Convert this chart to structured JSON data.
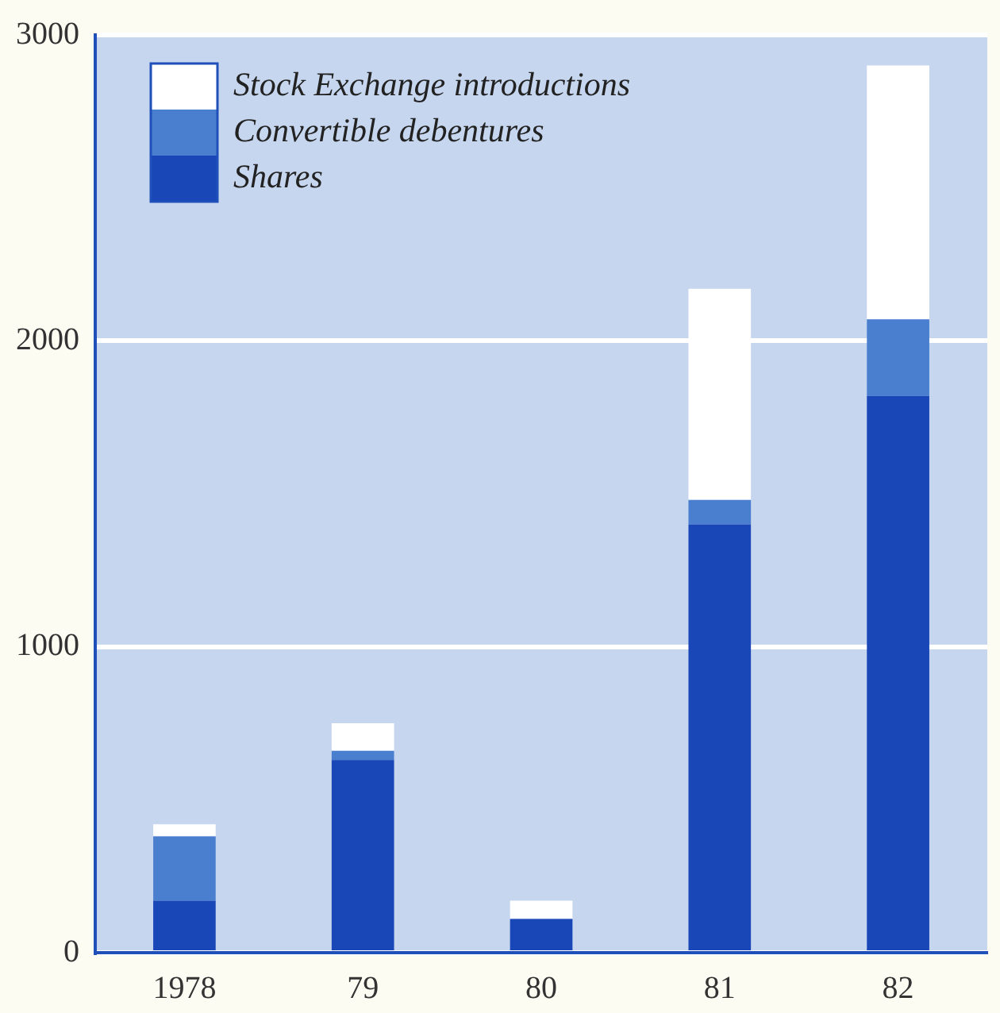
{
  "chart_data": {
    "type": "bar",
    "stacked": true,
    "categories": [
      "1978",
      "79",
      "80",
      "81",
      "82"
    ],
    "series": [
      {
        "name": "Shares",
        "color": "#1a47b8",
        "values": [
          170,
          630,
          110,
          1400,
          1820
        ]
      },
      {
        "name": "Convertible debentures",
        "color": "#4a7fd0",
        "values": [
          210,
          30,
          0,
          80,
          250
        ]
      },
      {
        "name": "Stock Exchange introductions",
        "color": "#ffffff",
        "values": [
          40,
          90,
          60,
          690,
          830
        ]
      }
    ],
    "ylim": [
      0,
      3000
    ],
    "yticks": [
      0,
      1000,
      2000,
      3000
    ],
    "grid": "y",
    "legend": "top left"
  }
}
